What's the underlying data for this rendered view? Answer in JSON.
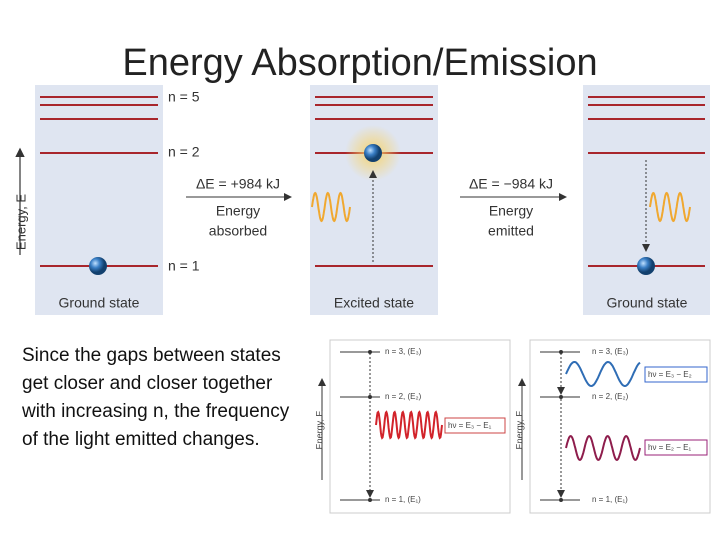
{
  "title": "Energy Absorption/Emission",
  "body": "Since the gaps between states get closer and closer together with increasing n, the frequency of the light emitted changes.",
  "top_diagram": {
    "axis_label": "Energy, E",
    "levels": [
      "n = 5",
      "n = 2",
      "n = 1"
    ],
    "panels": [
      {
        "caption": "Ground state"
      },
      {
        "caption": "Excited state"
      },
      {
        "caption": "Ground state"
      }
    ],
    "transitions": [
      {
        "delta": "ΔE = +984 kJ",
        "label_lines": [
          "Energy",
          "absorbed"
        ]
      },
      {
        "delta": "ΔE = −984 kJ",
        "label_lines": [
          "Energy",
          "emitted"
        ]
      }
    ]
  },
  "bottom_diagrams": [
    {
      "axis_label": "Energy, E",
      "levels": [
        "n = 3, (E₃)",
        "n = 2, (E₂)",
        "n = 1, (E₁)"
      ],
      "photons": [
        "hν = E₃ − E₁"
      ]
    },
    {
      "axis_label": "Energy, E",
      "levels": [
        "n = 3, (E₃)",
        "n = 2, (E₂)",
        "n = 1, (E₁)"
      ],
      "photons": [
        "hν = E₃ − E₂",
        "hν = E₂ − E₁"
      ]
    }
  ]
}
